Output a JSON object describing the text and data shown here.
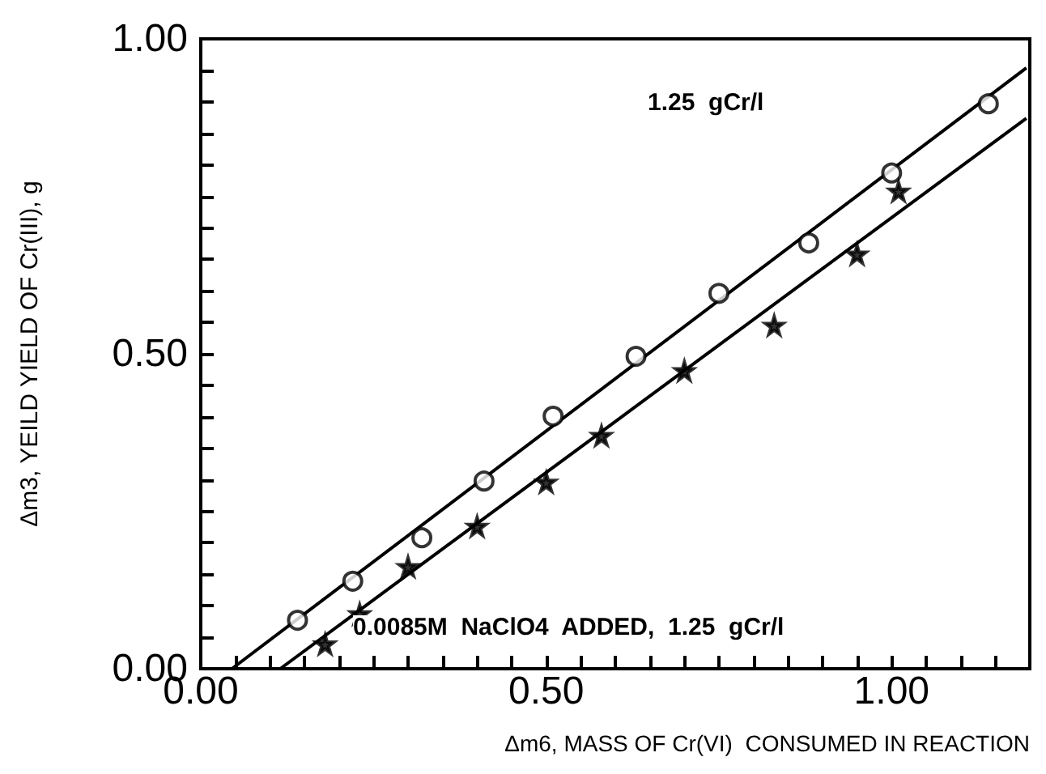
{
  "chart_data": {
    "type": "scatter",
    "xlabel": "Δm6, MASS OF Cr(VI)  CONSUMED IN REACTION",
    "ylabel": "Δm3, YEILD YIELD OF Cr(III), g",
    "xlim": [
      0,
      1.2
    ],
    "ylim": [
      0,
      1
    ],
    "xticks": [
      {
        "value": 0,
        "label": "0.00"
      },
      {
        "value": 0.05,
        "label": null
      },
      {
        "value": 0.1,
        "label": null
      },
      {
        "value": 0.15,
        "label": null
      },
      {
        "value": 0.2,
        "label": null
      },
      {
        "value": 0.25,
        "label": null
      },
      {
        "value": 0.3,
        "label": null
      },
      {
        "value": 0.35,
        "label": null
      },
      {
        "value": 0.4,
        "label": null
      },
      {
        "value": 0.45,
        "label": null
      },
      {
        "value": 0.5,
        "label": "0.50"
      },
      {
        "value": 0.55,
        "label": null
      },
      {
        "value": 0.6,
        "label": null
      },
      {
        "value": 0.65,
        "label": null
      },
      {
        "value": 0.7,
        "label": null
      },
      {
        "value": 0.75,
        "label": null
      },
      {
        "value": 0.8,
        "label": null
      },
      {
        "value": 0.85,
        "label": null
      },
      {
        "value": 0.9,
        "label": null
      },
      {
        "value": 0.95,
        "label": null
      },
      {
        "value": 1,
        "label": "1.00"
      },
      {
        "value": 1.05,
        "label": null
      },
      {
        "value": 1.1,
        "label": null
      },
      {
        "value": 1.15,
        "label": null
      },
      {
        "value": 1.2,
        "label": null
      }
    ],
    "yticks": [
      {
        "value": 0,
        "label": "0.00"
      },
      {
        "value": 0.05,
        "label": null
      },
      {
        "value": 0.1,
        "label": null
      },
      {
        "value": 0.15,
        "label": null
      },
      {
        "value": 0.2,
        "label": null
      },
      {
        "value": 0.25,
        "label": null
      },
      {
        "value": 0.3,
        "label": null
      },
      {
        "value": 0.35,
        "label": null
      },
      {
        "value": 0.4,
        "label": null
      },
      {
        "value": 0.45,
        "label": null
      },
      {
        "value": 0.5,
        "label": "0.50"
      },
      {
        "value": 0.55,
        "label": null
      },
      {
        "value": 0.6,
        "label": null
      },
      {
        "value": 0.65,
        "label": null
      },
      {
        "value": 0.7,
        "label": null
      },
      {
        "value": 0.75,
        "label": null
      },
      {
        "value": 0.8,
        "label": null
      },
      {
        "value": 0.85,
        "label": null
      },
      {
        "value": 0.9,
        "label": null
      },
      {
        "value": 0.95,
        "label": null
      },
      {
        "value": 1,
        "label": "1.00"
      }
    ],
    "grid": false,
    "series": [
      {
        "marker": "circle",
        "color": "#000000",
        "x": [
          0.14,
          0.22,
          0.32,
          0.41,
          0.51,
          0.63,
          0.75,
          0.88,
          1.0,
          1.14
        ],
        "values": [
          0.077,
          0.139,
          0.208,
          0.298,
          0.401,
          0.496,
          0.596,
          0.676,
          0.787,
          0.897
        ]
      },
      {
        "marker": "star",
        "color": "#000000",
        "x": [
          0.18,
          0.23,
          0.3,
          0.4,
          0.5,
          0.58,
          0.7,
          0.83,
          0.95,
          1.01
        ],
        "values": [
          0.039,
          0.087,
          0.162,
          0.226,
          0.296,
          0.37,
          0.473,
          0.545,
          0.658,
          0.758
        ]
      },
      {
        "type": "line",
        "marker": "none",
        "line_style": "solid",
        "color": "#000000",
        "x": [
          0.045,
          1.195
        ],
        "values": [
          0,
          0.954
        ]
      },
      {
        "type": "line",
        "marker": "none",
        "line_style": "solid",
        "color": "#000000",
        "x": [
          0.115,
          1.195
        ],
        "values": [
          0,
          0.874
        ]
      }
    ],
    "annotations": [
      "1.25  gCr/l",
      "0.0085M  NaClO4  ADDED,  1.25  gCr/l"
    ]
  }
}
